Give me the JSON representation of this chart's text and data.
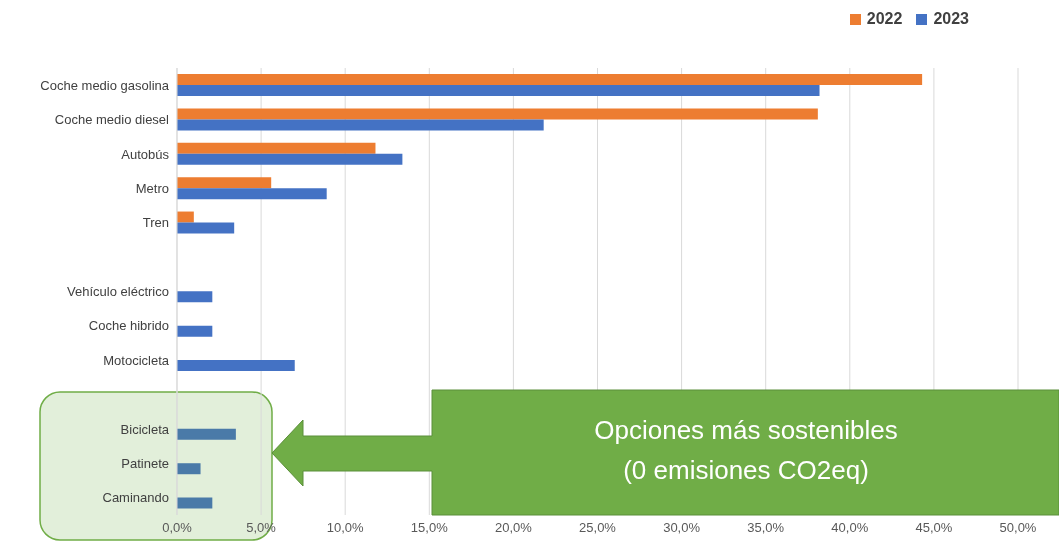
{
  "chart_data": {
    "type": "bar",
    "orientation": "horizontal",
    "categories": [
      "Coche medio gasolina",
      "Coche medio diesel",
      "Autobús",
      "Metro",
      "Tren",
      null,
      "Vehículo eléctrico",
      "Coche hibrido",
      "Motocicleta",
      null,
      "Bicicleta",
      "Patinete",
      "Caminando"
    ],
    "series": [
      {
        "name": "2022",
        "color": "#ed7d31",
        "values": [
          44.3,
          38.1,
          11.8,
          5.6,
          1.0,
          null,
          null,
          null,
          null,
          null,
          null,
          null,
          null
        ]
      },
      {
        "name": "2023",
        "color": "#4472c4",
        "colors": [
          "#4472c4",
          "#4472c4",
          "#4472c4",
          "#4472c4",
          "#4472c4",
          "#4472c4",
          "#4472c4",
          "#4472c4",
          "#4472c4",
          "#4472c4",
          "#4a7aa8",
          "#4a7aa8",
          "#4a7aa8"
        ],
        "values": [
          38.2,
          21.8,
          13.4,
          8.9,
          3.4,
          null,
          2.1,
          2.1,
          7.0,
          null,
          3.5,
          1.4,
          2.1
        ]
      }
    ],
    "xlim": [
      0,
      50
    ],
    "xticks": [
      {
        "value": 0,
        "label": "0,0%"
      },
      {
        "value": 5,
        "label": "5,0%"
      },
      {
        "value": 10,
        "label": "10,0%"
      },
      {
        "value": 15,
        "label": "15,0%"
      },
      {
        "value": 20,
        "label": "20,0%"
      },
      {
        "value": 25,
        "label": "25,0%"
      },
      {
        "value": 30,
        "label": "30,0%"
      },
      {
        "value": 35,
        "label": "35,0%"
      },
      {
        "value": 40,
        "label": "40,0%"
      },
      {
        "value": 45,
        "label": "45,0%"
      },
      {
        "value": 50,
        "label": "50,0%"
      }
    ],
    "grid": "x",
    "legend": "top right",
    "annotations": [
      "Opciones más sostenibles\n(0 emisiones CO2eq)"
    ]
  }
}
